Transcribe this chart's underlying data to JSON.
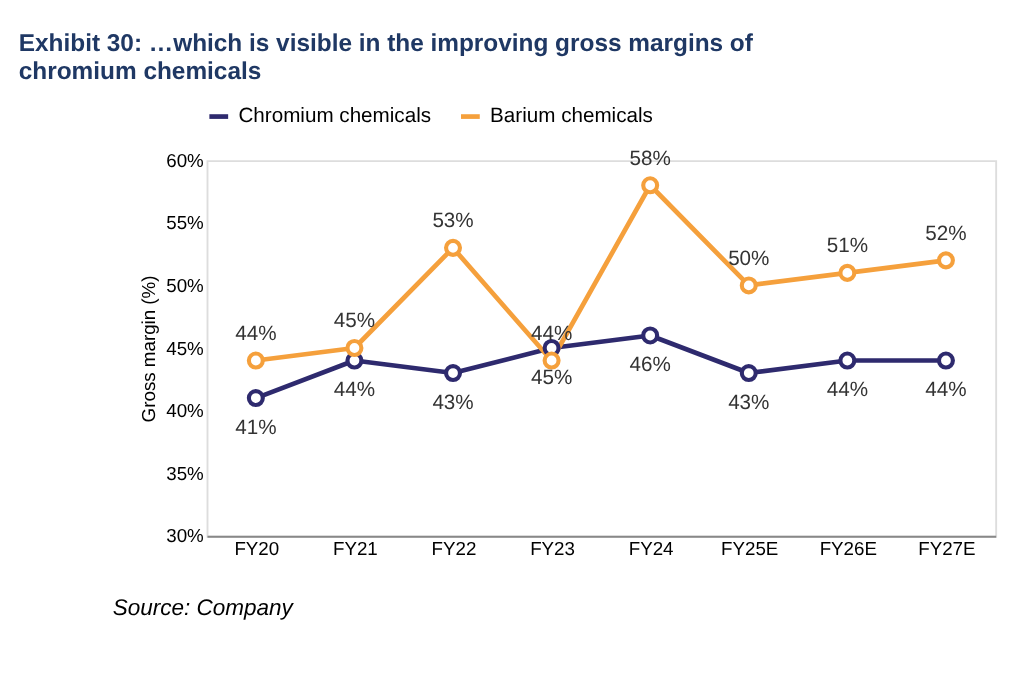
{
  "chart_data": {
    "type": "line",
    "title": "Exhibit 30: …which is visible in the improving gross margins of chromium chemicals",
    "ylabel": "Gross margin (%)",
    "categories": [
      "FY20",
      "FY21",
      "FY22",
      "FY23",
      "FY24",
      "FY25E",
      "FY26E",
      "FY27E"
    ],
    "series": [
      {
        "name": "Chromium chemicals",
        "color": "#2e2a6e",
        "values": [
          41,
          44,
          43,
          45,
          46,
          43,
          44,
          44
        ],
        "value_labels": [
          "41%",
          "44%",
          "43%",
          "45%",
          "46%",
          "43%",
          "44%",
          "44%"
        ]
      },
      {
        "name": "Barium chemicals",
        "color": "#f5a03c",
        "values": [
          44,
          45,
          53,
          44,
          58,
          50,
          51,
          52
        ],
        "value_labels": [
          "44%",
          "45%",
          "53%",
          "44%",
          "58%",
          "50%",
          "51%",
          "52%"
        ]
      }
    ],
    "ylim": [
      30,
      60
    ],
    "yticks": [
      {
        "value": 30,
        "label": "30%"
      },
      {
        "value": 35,
        "label": "35%"
      },
      {
        "value": 40,
        "label": "40%"
      },
      {
        "value": 45,
        "label": "45%"
      },
      {
        "value": 50,
        "label": "50%"
      },
      {
        "value": 55,
        "label": "55%"
      },
      {
        "value": 60,
        "label": "60%"
      }
    ],
    "legend": "top",
    "marker": "circle",
    "line_style": "solid",
    "grid": false,
    "annotations": [
      "Source: Company"
    ]
  }
}
